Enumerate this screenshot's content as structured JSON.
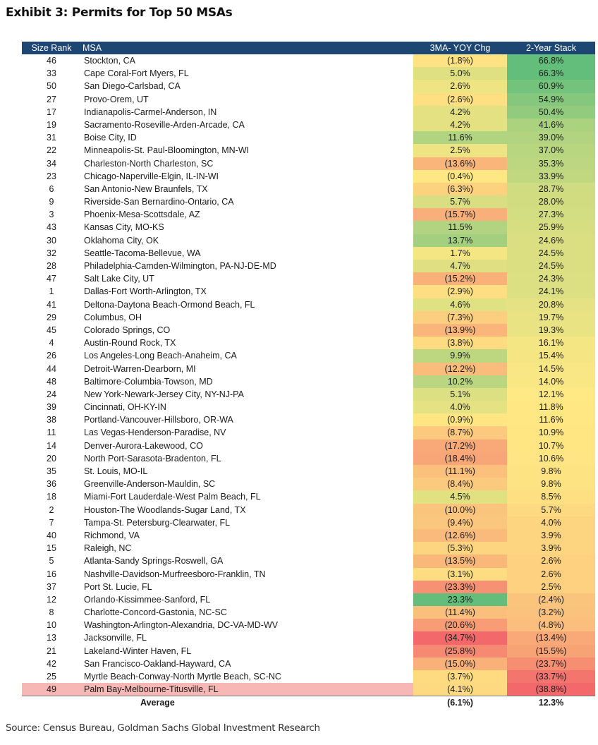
{
  "title": "Exhibit 3: Permits for Top 50 MSAs",
  "headers": {
    "rank": "Size Rank",
    "msa": "MSA",
    "yoy": "3MA- YOY Chg",
    "stack": "2-Year Stack"
  },
  "rows": [
    [
      "46",
      "Stockton, CA",
      "(1.8%)",
      "66.8%"
    ],
    [
      "33",
      "Cape Coral-Fort Myers, FL",
      "5.0%",
      "66.3%"
    ],
    [
      "50",
      "San Diego-Carlsbad, CA",
      "2.6%",
      "60.9%"
    ],
    [
      "27",
      "Provo-Orem, UT",
      "(2.6%)",
      "54.9%"
    ],
    [
      "17",
      "Indianapolis-Carmel-Anderson, IN",
      "4.2%",
      "50.4%"
    ],
    [
      "19",
      "Sacramento-Roseville-Arden-Arcade, CA",
      "4.2%",
      "41.6%"
    ],
    [
      "31",
      "Boise City, ID",
      "11.6%",
      "39.0%"
    ],
    [
      "22",
      "Minneapolis-St. Paul-Bloomington, MN-WI",
      "2.5%",
      "37.0%"
    ],
    [
      "34",
      "Charleston-North Charleston, SC",
      "(13.6%)",
      "35.3%"
    ],
    [
      "23",
      "Chicago-Naperville-Elgin, IL-IN-WI",
      "(0.4%)",
      "33.9%"
    ],
    [
      "6",
      "San Antonio-New Braunfels, TX",
      "(6.3%)",
      "28.7%"
    ],
    [
      "9",
      "Riverside-San Bernardino-Ontario, CA",
      "5.7%",
      "28.0%"
    ],
    [
      "3",
      "Phoenix-Mesa-Scottsdale, AZ",
      "(15.7%)",
      "27.3%"
    ],
    [
      "43",
      "Kansas City, MO-KS",
      "11.5%",
      "25.9%"
    ],
    [
      "30",
      "Oklahoma City, OK",
      "13.7%",
      "24.6%"
    ],
    [
      "32",
      "Seattle-Tacoma-Bellevue, WA",
      "1.7%",
      "24.5%"
    ],
    [
      "28",
      "Philadelphia-Camden-Wilmington, PA-NJ-DE-MD",
      "4.7%",
      "24.5%"
    ],
    [
      "47",
      "Salt Lake City, UT",
      "(15.2%)",
      "24.3%"
    ],
    [
      "1",
      "Dallas-Fort Worth-Arlington, TX",
      "(2.9%)",
      "24.1%"
    ],
    [
      "41",
      "Deltona-Daytona Beach-Ormond Beach, FL",
      "4.6%",
      "20.8%"
    ],
    [
      "29",
      "Columbus, OH",
      "(7.3%)",
      "19.7%"
    ],
    [
      "45",
      "Colorado Springs, CO",
      "(13.9%)",
      "19.3%"
    ],
    [
      "4",
      "Austin-Round Rock, TX",
      "(3.8%)",
      "16.1%"
    ],
    [
      "26",
      "Los Angeles-Long Beach-Anaheim, CA",
      "9.9%",
      "15.4%"
    ],
    [
      "44",
      "Detroit-Warren-Dearborn, MI",
      "(12.2%)",
      "14.5%"
    ],
    [
      "48",
      "Baltimore-Columbia-Towson, MD",
      "10.2%",
      "14.0%"
    ],
    [
      "24",
      "New York-Newark-Jersey City, NY-NJ-PA",
      "5.1%",
      "12.1%"
    ],
    [
      "39",
      "Cincinnati, OH-KY-IN",
      "4.0%",
      "11.8%"
    ],
    [
      "38",
      "Portland-Vancouver-Hillsboro, OR-WA",
      "(0.9%)",
      "11.6%"
    ],
    [
      "11",
      "Las Vegas-Henderson-Paradise, NV",
      "(8.7%)",
      "10.9%"
    ],
    [
      "14",
      "Denver-Aurora-Lakewood, CO",
      "(17.2%)",
      "10.7%"
    ],
    [
      "20",
      "North Port-Sarasota-Bradenton, FL",
      "(18.4%)",
      "10.6%"
    ],
    [
      "35",
      "St. Louis, MO-IL",
      "(11.1%)",
      "9.8%"
    ],
    [
      "36",
      "Greenville-Anderson-Mauldin, SC",
      "(8.4%)",
      "9.8%"
    ],
    [
      "18",
      "Miami-Fort Lauderdale-West Palm Beach, FL",
      "4.5%",
      "8.5%"
    ],
    [
      "2",
      "Houston-The Woodlands-Sugar Land, TX",
      "(10.0%)",
      "5.7%"
    ],
    [
      "7",
      "Tampa-St. Petersburg-Clearwater, FL",
      "(9.4%)",
      "4.0%"
    ],
    [
      "40",
      "Richmond, VA",
      "(12.6%)",
      "3.9%"
    ],
    [
      "15",
      "Raleigh, NC",
      "(5.3%)",
      "3.9%"
    ],
    [
      "5",
      "Atlanta-Sandy Springs-Roswell, GA",
      "(13.5%)",
      "2.6%"
    ],
    [
      "16",
      "Nashville-Davidson-Murfreesboro-Franklin, TN",
      "(3.1%)",
      "2.6%"
    ],
    [
      "37",
      "Port St. Lucie, FL",
      "(23.3%)",
      "2.5%"
    ],
    [
      "12",
      "Orlando-Kissimmee-Sanford, FL",
      "23.3%",
      "(2.4%)"
    ],
    [
      "8",
      "Charlotte-Concord-Gastonia, NC-SC",
      "(11.4%)",
      "(3.2%)"
    ],
    [
      "10",
      "Washington-Arlington-Alexandria, DC-VA-MD-WV",
      "(20.6%)",
      "(4.8%)"
    ],
    [
      "13",
      "Jacksonville, FL",
      "(34.7%)",
      "(13.4%)"
    ],
    [
      "21",
      "Lakeland-Winter Haven, FL",
      "(25.8%)",
      "(15.5%)"
    ],
    [
      "42",
      "San Francisco-Oakland-Hayward, CA",
      "(15.0%)",
      "(23.7%)"
    ],
    [
      "25",
      "Myrtle Beach-Conway-North Myrtle Beach, SC-NC",
      "(3.7%)",
      "(33.7%)"
    ],
    [
      "49",
      "Palm Bay-Melbourne-Titusville, FL",
      "(4.1%)",
      "(38.8%)"
    ]
  ],
  "highlight_rank": "49",
  "average": {
    "label": "Average",
    "yoy": "(6.1%)",
    "stack": "12.3%"
  },
  "source": "Source: Census Bureau, Goldman Sachs Global Investment Research"
}
